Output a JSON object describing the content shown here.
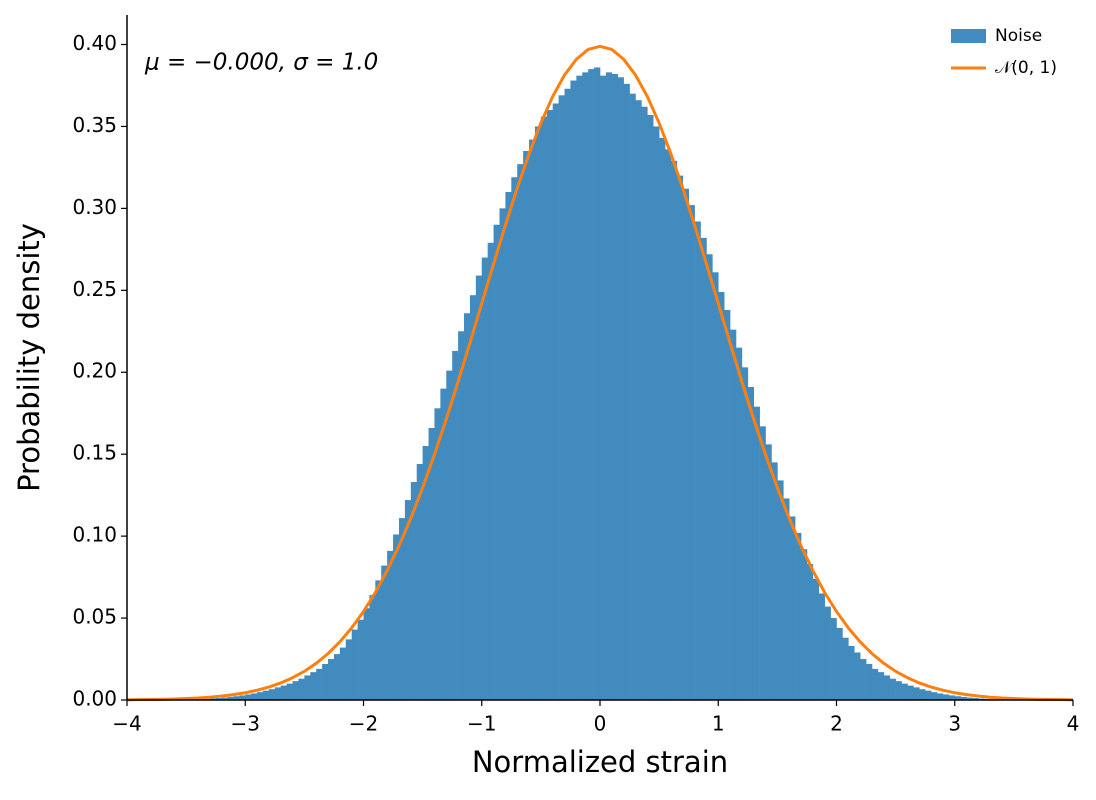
{
  "chart_data": {
    "type": "histogram",
    "xlabel": "Normalized strain",
    "ylabel": "Probability density",
    "annotation": "μ = −0.000,  σ = 1.0",
    "xlim": [
      -4,
      4
    ],
    "ylim": [
      0,
      0.418
    ],
    "xticks": [
      {
        "value": -4,
        "label": "−4"
      },
      {
        "value": -3,
        "label": "−3"
      },
      {
        "value": -2,
        "label": "−2"
      },
      {
        "value": -1,
        "label": "−1"
      },
      0,
      1,
      2,
      3,
      4
    ],
    "yticks": [
      {
        "value": 0,
        "label": "0.00"
      },
      {
        "value": 0.05,
        "label": "0.05"
      },
      {
        "value": 0.1,
        "label": "0.10"
      },
      {
        "value": 0.15,
        "label": "0.15"
      },
      {
        "value": 0.2,
        "label": "0.20"
      },
      {
        "value": 0.25,
        "label": "0.25"
      },
      {
        "value": 0.3,
        "label": "0.30"
      },
      {
        "value": 0.35,
        "label": "0.35"
      },
      {
        "value": 0.4,
        "label": "0.40"
      }
    ],
    "legend": "upper right",
    "series": [
      {
        "name": "Noise",
        "type": "histogram",
        "color": "#428bbf",
        "bins": [
          -4,
          -3.95,
          -3.9,
          -3.85,
          -3.8,
          -3.75,
          -3.7,
          -3.65,
          -3.6,
          -3.55,
          -3.5,
          -3.45,
          -3.4,
          -3.35,
          -3.3,
          -3.25,
          -3.2,
          -3.15,
          -3.1,
          -3.05,
          -3,
          -2.95,
          -2.9,
          -2.85,
          -2.8,
          -2.75,
          -2.7,
          -2.65,
          -2.6,
          -2.55,
          -2.5,
          -2.45,
          -2.4,
          -2.35,
          -2.3,
          -2.25,
          -2.2,
          -2.15,
          -2.1,
          -2.05,
          -2,
          -1.95,
          -1.9,
          -1.85,
          -1.8,
          -1.75,
          -1.7,
          -1.65,
          -1.6,
          -1.55,
          -1.5,
          -1.45,
          -1.4,
          -1.35,
          -1.3,
          -1.25,
          -1.2,
          -1.15,
          -1.1,
          -1.05,
          -1,
          -0.95,
          -0.9,
          -0.85,
          -0.8,
          -0.75,
          -0.7,
          -0.65,
          -0.6,
          -0.55,
          -0.5,
          -0.45,
          -0.4,
          -0.35,
          -0.3,
          -0.25,
          -0.2,
          -0.15,
          -0.1,
          -0.05,
          0,
          0.05,
          0.1,
          0.15,
          0.2,
          0.25,
          0.3,
          0.35,
          0.4,
          0.45,
          0.5,
          0.55,
          0.6,
          0.65,
          0.7,
          0.75,
          0.8,
          0.85,
          0.9,
          0.95,
          1,
          1.05,
          1.1,
          1.15,
          1.2,
          1.25,
          1.3,
          1.35,
          1.4,
          1.45,
          1.5,
          1.55,
          1.6,
          1.65,
          1.7,
          1.75,
          1.8,
          1.85,
          1.9,
          1.95,
          2,
          2.05,
          2.1,
          2.15,
          2.2,
          2.25,
          2.3,
          2.35,
          2.4,
          2.45,
          2.5,
          2.55,
          2.6,
          2.65,
          2.7,
          2.75,
          2.8,
          2.85,
          2.9,
          2.95,
          3,
          3.05,
          3.1,
          3.15,
          3.2,
          3.25,
          3.3,
          3.35,
          3.4,
          3.45,
          3.5,
          3.55,
          3.6,
          3.65,
          3.7,
          3.75,
          3.8,
          3.85,
          3.9,
          3.95,
          4
        ],
        "values": [
          0,
          0,
          0,
          0,
          0,
          0.0001,
          0.0001,
          0.0001,
          0.0002,
          0.0002,
          0.0003,
          0.0004,
          0.0005,
          0.0007,
          0.0009,
          0.0012,
          0.0015,
          0.0019,
          0.0023,
          0.0028,
          0.0034,
          0.004,
          0.0048,
          0.0057,
          0.0066,
          0.0077,
          0.0088,
          0.01,
          0.0115,
          0.013,
          0.015,
          0.017,
          0.019,
          0.022,
          0.025,
          0.028,
          0.032,
          0.037,
          0.043,
          0.049,
          0.056,
          0.064,
          0.073,
          0.082,
          0.091,
          0.101,
          0.111,
          0.122,
          0.133,
          0.144,
          0.155,
          0.166,
          0.178,
          0.19,
          0.201,
          0.213,
          0.225,
          0.236,
          0.247,
          0.259,
          0.27,
          0.279,
          0.29,
          0.3,
          0.31,
          0.319,
          0.327,
          0.335,
          0.342,
          0.35,
          0.356,
          0.36,
          0.364,
          0.369,
          0.373,
          0.378,
          0.381,
          0.383,
          0.385,
          0.386,
          0.381,
          0.383,
          0.382,
          0.38,
          0.376,
          0.37,
          0.366,
          0.362,
          0.357,
          0.35,
          0.343,
          0.336,
          0.329,
          0.32,
          0.312,
          0.302,
          0.292,
          0.282,
          0.272,
          0.261,
          0.249,
          0.238,
          0.226,
          0.215,
          0.203,
          0.191,
          0.179,
          0.167,
          0.156,
          0.145,
          0.134,
          0.123,
          0.112,
          0.102,
          0.092,
          0.083,
          0.074,
          0.065,
          0.057,
          0.05,
          0.044,
          0.038,
          0.033,
          0.029,
          0.025,
          0.022,
          0.019,
          0.017,
          0.015,
          0.013,
          0.0115,
          0.01,
          0.0088,
          0.0077,
          0.0066,
          0.0057,
          0.0048,
          0.004,
          0.0034,
          0.0028,
          0.0023,
          0.0019,
          0.0015,
          0.0012,
          0.0009,
          0.0007,
          0.0005,
          0.0004,
          0.0003,
          0.0002,
          0.0002,
          0.0001,
          0.0001,
          0.0001,
          0,
          0,
          0,
          0,
          0,
          0
        ]
      },
      {
        "name": "𝒩(0, 1)",
        "type": "line",
        "color": "#ff7f0e",
        "x": [
          -4,
          -3.9,
          -3.8,
          -3.7,
          -3.6,
          -3.5,
          -3.4,
          -3.3,
          -3.2,
          -3.1,
          -3,
          -2.9,
          -2.8,
          -2.7,
          -2.6,
          -2.5,
          -2.4,
          -2.3,
          -2.2,
          -2.1,
          -2,
          -1.9,
          -1.8,
          -1.7,
          -1.6,
          -1.5,
          -1.4,
          -1.3,
          -1.2,
          -1.1,
          -1,
          -0.9,
          -0.8,
          -0.7,
          -0.6,
          -0.5,
          -0.4,
          -0.3,
          -0.2,
          -0.1,
          0,
          0.1,
          0.2,
          0.3,
          0.4,
          0.5,
          0.6,
          0.7,
          0.8,
          0.9,
          1,
          1.1,
          1.2,
          1.3,
          1.4,
          1.5,
          1.6,
          1.7,
          1.8,
          1.9,
          2,
          2.1,
          2.2,
          2.3,
          2.4,
          2.5,
          2.6,
          2.7,
          2.8,
          2.9,
          3,
          3.1,
          3.2,
          3.3,
          3.4,
          3.5,
          3.6,
          3.7,
          3.8,
          3.9,
          4
        ],
        "values": [
          0.0001,
          0.0002,
          0.0003,
          0.0004,
          0.0006,
          0.0009,
          0.0012,
          0.0017,
          0.0024,
          0.0033,
          0.0044,
          0.006,
          0.0079,
          0.0104,
          0.0136,
          0.0175,
          0.0224,
          0.0283,
          0.0355,
          0.044,
          0.054,
          0.0656,
          0.079,
          0.094,
          0.1109,
          0.1295,
          0.1497,
          0.1714,
          0.1942,
          0.2179,
          0.242,
          0.2661,
          0.2897,
          0.3123,
          0.3332,
          0.3521,
          0.3683,
          0.3814,
          0.391,
          0.397,
          0.3989,
          0.397,
          0.391,
          0.3814,
          0.3683,
          0.3521,
          0.3332,
          0.3123,
          0.2897,
          0.2661,
          0.242,
          0.2179,
          0.1942,
          0.1714,
          0.1497,
          0.1295,
          0.1109,
          0.094,
          0.079,
          0.0656,
          0.054,
          0.044,
          0.0355,
          0.0283,
          0.0224,
          0.0175,
          0.0136,
          0.0104,
          0.0079,
          0.006,
          0.0044,
          0.0033,
          0.0024,
          0.0017,
          0.0012,
          0.0009,
          0.0006,
          0.0004,
          0.0003,
          0.0002,
          0.0001
        ]
      }
    ]
  }
}
